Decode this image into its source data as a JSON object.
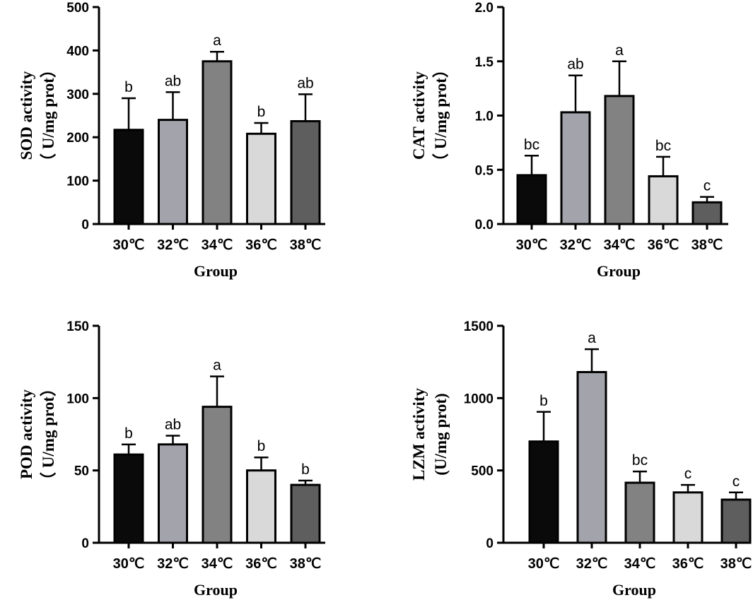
{
  "chart_data": [
    {
      "type": "bar",
      "panel": "SOD",
      "categories": [
        "30℃",
        "32℃",
        "34℃",
        "36℃",
        "38℃"
      ],
      "values": [
        217,
        240,
        375,
        208,
        237
      ],
      "errors": [
        73,
        64,
        22,
        25,
        62
      ],
      "sig_letters": [
        "b",
        "ab",
        "a",
        "b",
        "ab"
      ],
      "bar_colors": [
        "#0a0a0a",
        "#a3a3ac",
        "#828282",
        "#d9d9d9",
        "#5e5e5e"
      ],
      "ylim": [
        0,
        500
      ],
      "yticks": [
        "0",
        "100",
        "200",
        "300",
        "400",
        "500"
      ],
      "ylabel_line1": "SOD activity",
      "ylabel_line2": "（ U/mg prot）",
      "xlabel": "Group"
    },
    {
      "type": "bar",
      "panel": "CAT",
      "categories": [
        "30℃",
        "32℃",
        "34℃",
        "36℃",
        "38℃"
      ],
      "values": [
        0.45,
        1.03,
        1.18,
        0.44,
        0.2
      ],
      "errors": [
        0.18,
        0.34,
        0.32,
        0.18,
        0.05
      ],
      "sig_letters": [
        "bc",
        "ab",
        "a",
        "bc",
        "c"
      ],
      "bar_colors": [
        "#0a0a0a",
        "#a3a3ac",
        "#828282",
        "#d9d9d9",
        "#5e5e5e"
      ],
      "ylim": [
        0,
        2.0
      ],
      "yticks": [
        "0.0",
        "0.5",
        "1.0",
        "1.5",
        "2.0"
      ],
      "ylabel_line1": "CAT activity",
      "ylabel_line2": "（ U/mg prot）",
      "xlabel": "Group"
    },
    {
      "type": "bar",
      "panel": "POD",
      "categories": [
        "30℃",
        "32℃",
        "34℃",
        "36℃",
        "38℃"
      ],
      "values": [
        61,
        68,
        94,
        50,
        40
      ],
      "errors": [
        7,
        6,
        21,
        9,
        3
      ],
      "sig_letters": [
        "b",
        "ab",
        "a",
        "b",
        "b"
      ],
      "bar_colors": [
        "#0a0a0a",
        "#a3a3ac",
        "#828282",
        "#d9d9d9",
        "#5e5e5e"
      ],
      "ylim": [
        0,
        150
      ],
      "yticks": [
        "0",
        "50",
        "100",
        "150"
      ],
      "ylabel_line1": "POD activity",
      "ylabel_line2": "（ U/mg prot）",
      "xlabel": "Group"
    },
    {
      "type": "bar",
      "panel": "LZM",
      "categories": [
        "30℃",
        "32℃",
        "34℃",
        "36℃",
        "38℃"
      ],
      "values": [
        700,
        1180,
        415,
        348,
        298
      ],
      "errors": [
        205,
        158,
        78,
        52,
        50
      ],
      "sig_letters": [
        "b",
        "a",
        "bc",
        "c",
        "c"
      ],
      "bar_colors": [
        "#0a0a0a",
        "#a3a3ac",
        "#828282",
        "#d9d9d9",
        "#5e5e5e"
      ],
      "ylim": [
        0,
        1500
      ],
      "yticks": [
        "0",
        "500",
        "1000",
        "1500"
      ],
      "ylabel_line1": "LZM activity",
      "ylabel_line2": "(U/mg prot)",
      "xlabel": "Group"
    }
  ]
}
